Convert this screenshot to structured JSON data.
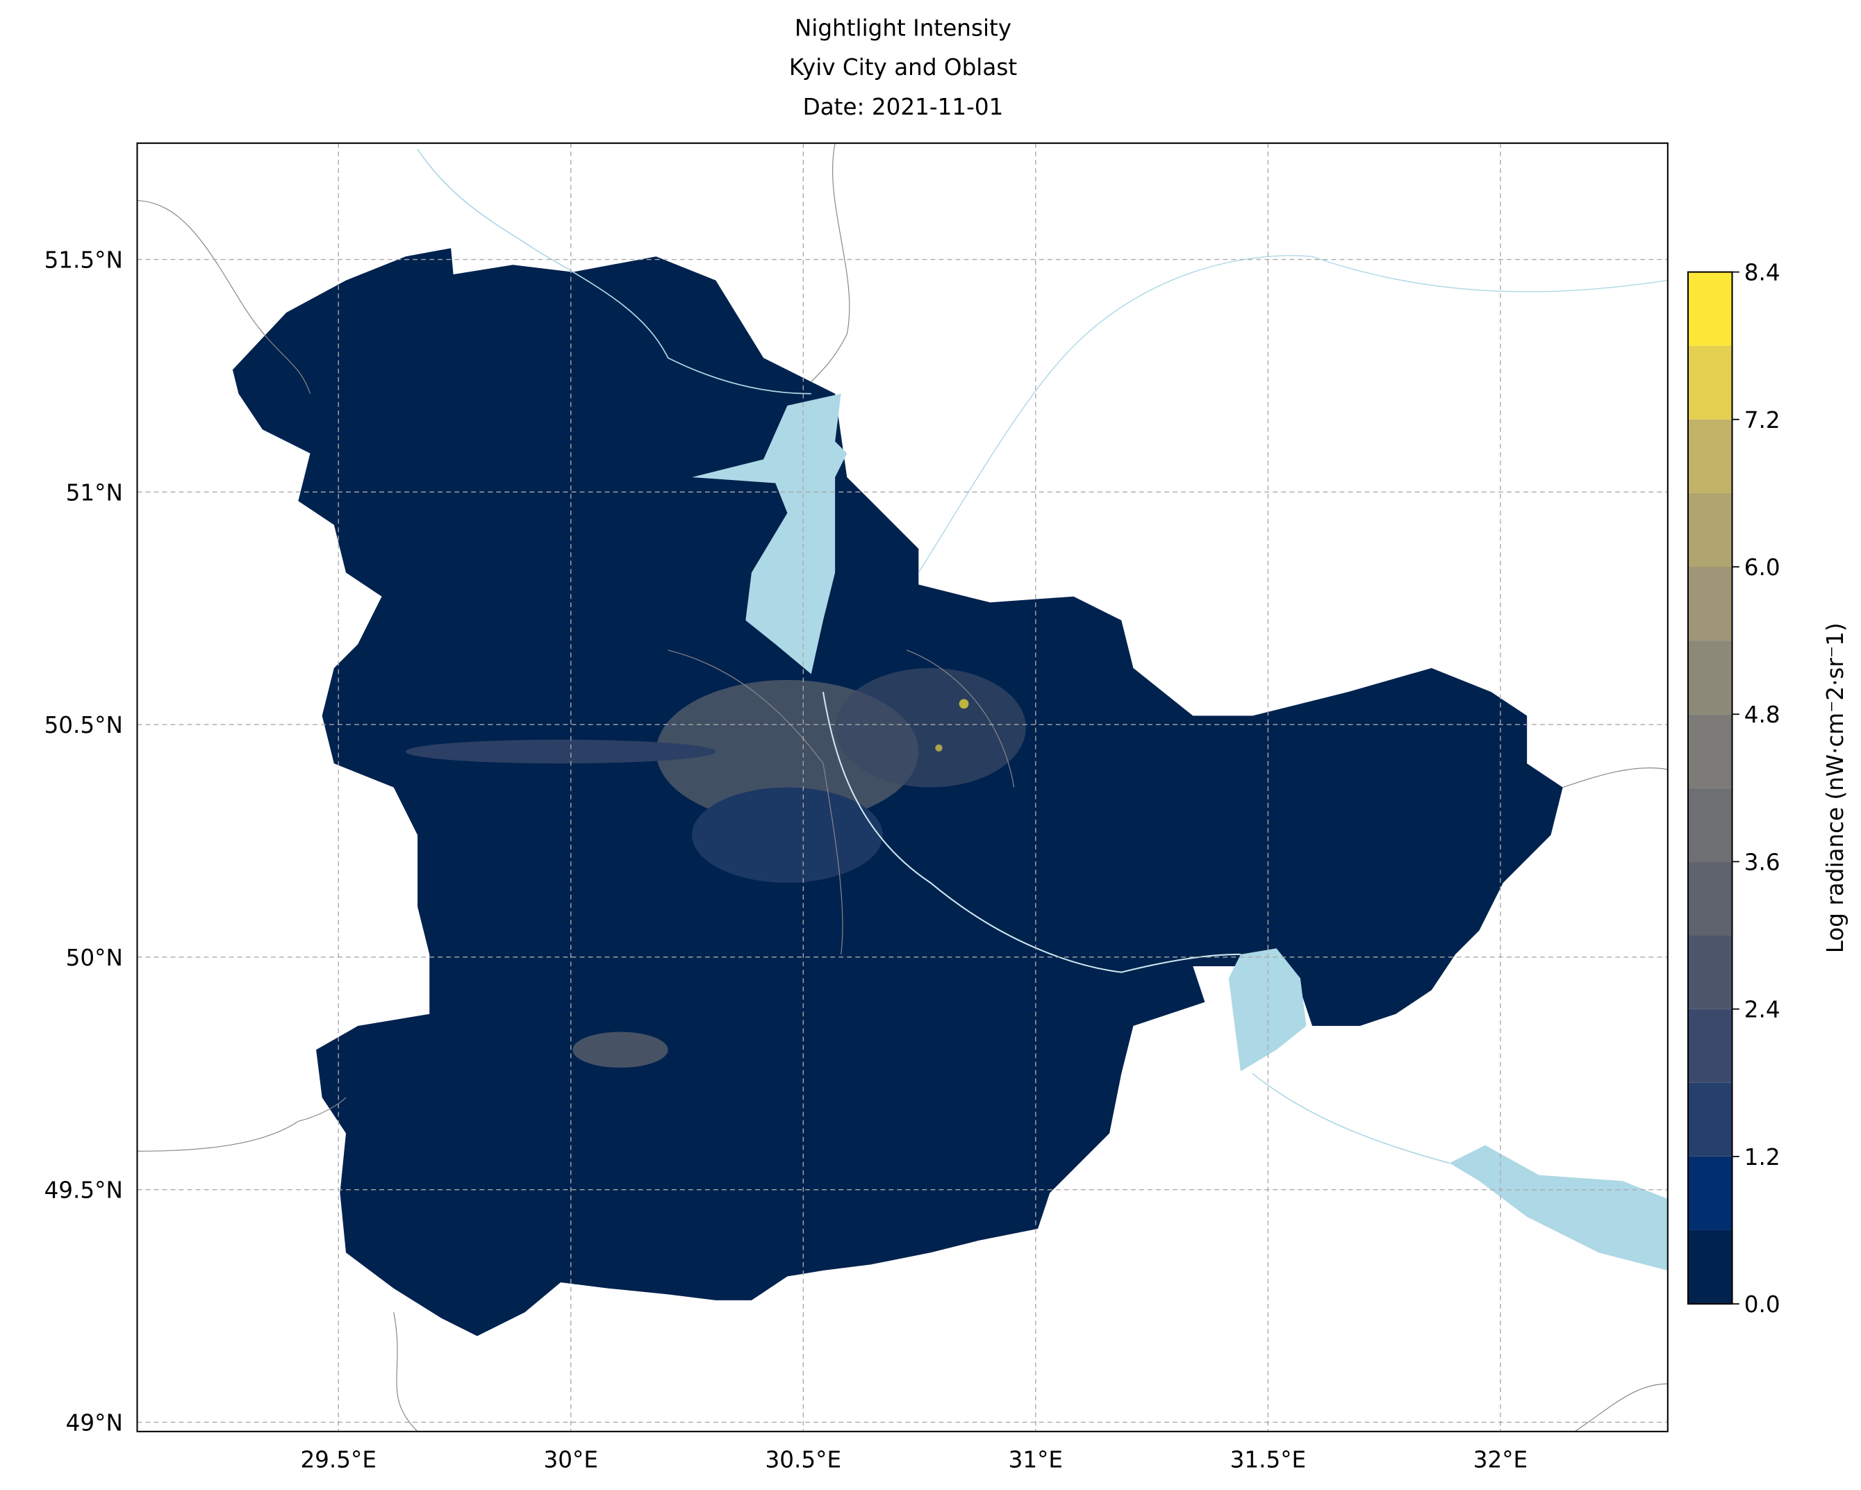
{
  "chart_data": {
    "type": "map",
    "title": [
      "Nightlight Intensity",
      "Kyiv City and Oblast",
      "Date: 2021-11-01"
    ],
    "xlim": [
      29.067,
      32.36
    ],
    "ylim": [
      48.98,
      51.75
    ],
    "xticks": [
      {
        "value": 29.5,
        "label": "29.5°E"
      },
      {
        "value": 30,
        "label": "30°E"
      },
      {
        "value": 30.5,
        "label": "30.5°E"
      },
      {
        "value": 31,
        "label": "31°E"
      },
      {
        "value": 31.5,
        "label": "31.5°E"
      },
      {
        "value": 32,
        "label": "32°E"
      }
    ],
    "yticks": [
      {
        "value": 49,
        "label": "49°N"
      },
      {
        "value": 49.5,
        "label": "49.5°N"
      },
      {
        "value": 50,
        "label": "50°N"
      },
      {
        "value": 50.5,
        "label": "50.5°N"
      },
      {
        "value": 51,
        "label": "51°N"
      },
      {
        "value": 51.5,
        "label": "51.5°N"
      }
    ],
    "grid": true,
    "colorbar": {
      "label": "Log radiance (nW·cm⁻2·sr⁻1)",
      "lim": [
        0,
        8.4
      ],
      "ticks": [
        {
          "value": 0,
          "label": "0.0"
        },
        1.2,
        2.4,
        3.6,
        4.8,
        {
          "value": 6,
          "label": "6.0"
        },
        7.2,
        8.4
      ],
      "levels": [
        0,
        0.6,
        1.2,
        1.8,
        2.4,
        3,
        3.6,
        4.2,
        4.8,
        5.4,
        6,
        6.6,
        7.2,
        7.8,
        8.4
      ],
      "colors": [
        "#00224e",
        "#012e6f",
        "#26406d",
        "#3b496c",
        "#4e566c",
        "#5f636e",
        "#6e6f72",
        "#7d7b78",
        "#8d8978",
        "#9e9676",
        "#b0a470",
        "#c2b369",
        "#e5cf50",
        "#fde737"
      ]
    }
  }
}
